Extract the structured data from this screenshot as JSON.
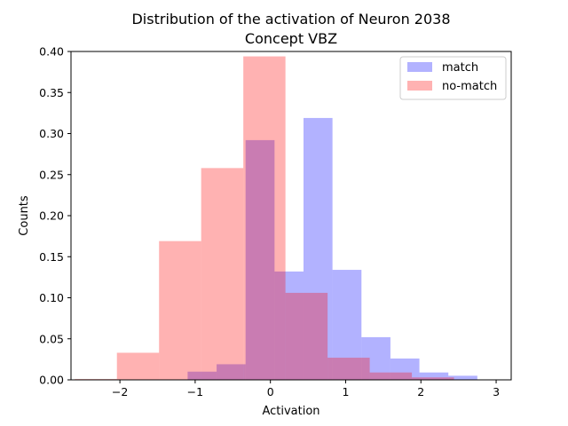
{
  "chart_data": {
    "type": "bar",
    "title": "Distribution of the activation of Neuron 2038",
    "subtitle": "Concept VBZ",
    "xlabel": "Activation",
    "ylabel": "Counts",
    "xlim": [
      -2.65,
      3.2
    ],
    "ylim": [
      0,
      0.4
    ],
    "xticks": [
      -2,
      -1,
      0,
      1,
      2,
      3
    ],
    "xtick_labels": [
      "−2",
      "−1",
      "0",
      "1",
      "2",
      "3"
    ],
    "yticks": [
      0.0,
      0.05,
      0.1,
      0.15,
      0.2,
      0.25,
      0.3,
      0.35,
      0.4
    ],
    "ytick_labels": [
      "0.00",
      "0.05",
      "0.10",
      "0.15",
      "0.20",
      "0.25",
      "0.30",
      "0.35",
      "0.40"
    ],
    "grid": false,
    "legend_position": "top-right",
    "series": [
      {
        "name": "match",
        "color": "#0000ff",
        "opacity": 0.3,
        "bin_edges": [
          -1.1,
          -0.715,
          -0.33,
          0.055,
          0.44,
          0.825,
          1.21,
          1.595,
          1.98,
          2.365,
          2.75
        ],
        "values": [
          0.01,
          0.019,
          0.292,
          0.132,
          0.319,
          0.134,
          0.052,
          0.026,
          0.009,
          0.005
        ]
      },
      {
        "name": "no-match",
        "color": "#ff0000",
        "opacity": 0.3,
        "bin_edges": [
          -2.6,
          -2.04,
          -1.48,
          -0.92,
          -0.36,
          0.2,
          0.76,
          1.32,
          1.88,
          2.44,
          3.0
        ],
        "values": [
          0.001,
          0.033,
          0.169,
          0.258,
          0.394,
          0.106,
          0.027,
          0.009,
          0.003,
          0.0
        ]
      }
    ]
  }
}
